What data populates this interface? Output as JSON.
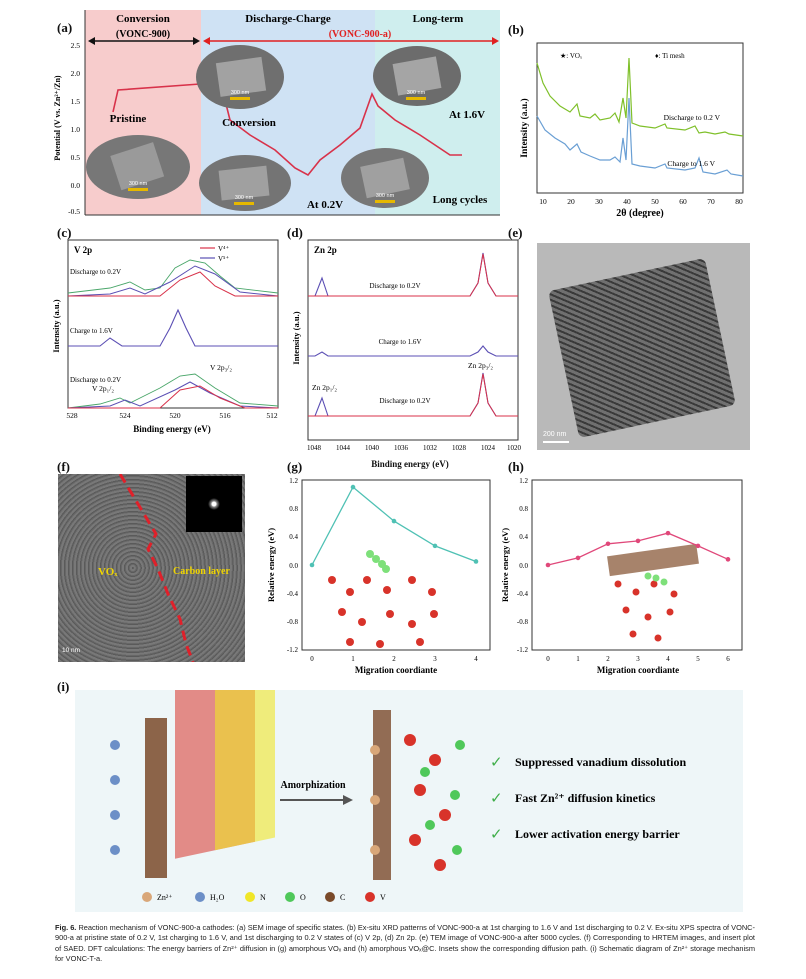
{
  "panels": {
    "a": {
      "letter": "(a)",
      "stages": [
        "Conversion",
        "Discharge-Charge",
        "Long-term"
      ],
      "stage_sub_left": "(VONC-900)",
      "stage_sub_right": "(VONC-900-a)",
      "ylabel": "Potential (V vs. Zn²⁺/Zn)",
      "yticks": [
        "2.5",
        "2.0",
        "1.5",
        "1.0",
        "0.5",
        "0.0",
        "-0.5"
      ],
      "labels": [
        "Pristine",
        "Conversion",
        "At 0.2V",
        "At 1.6V",
        "Long cycles"
      ],
      "scalebar": "300 nm",
      "colors": {
        "conversion": "#f6c6c6",
        "discharge": "#cfe3f5",
        "longterm": "#cdeef0",
        "curve": "#d8324a",
        "arrow": "#e02020"
      }
    },
    "b": {
      "letter": "(b)",
      "ylabel": "Intensity (a.u.)",
      "xlabel": "2θ (degree)",
      "xticks": [
        "10",
        "20",
        "30",
        "40",
        "50",
        "60",
        "70",
        "80"
      ],
      "legend_vox": "★: VOₓ",
      "legend_ti": "♦: Ti mesh",
      "series": [
        {
          "name": "Discharge to 0.2 V",
          "color": "#7fc02a"
        },
        {
          "name": "Charge to 1.6 V",
          "color": "#6a9fd4"
        }
      ]
    },
    "c": {
      "letter": "(c)",
      "title": "V 2p",
      "ylabel": "Intensity (a.u.)",
      "xlabel": "Binding energy (eV)",
      "xticks": [
        "528",
        "524",
        "520",
        "516",
        "512"
      ],
      "legend": [
        "V⁴⁺",
        "V⁵⁺"
      ],
      "traces": [
        "Discharge to 0.2V",
        "Charge to 1.6V",
        "Discharge to 0.2V"
      ],
      "peak_labels": [
        "V 2p₃/₂",
        "V 2p₁/₂"
      ]
    },
    "d": {
      "letter": "(d)",
      "title": "Zn 2p",
      "ylabel": "Intensity (a.u.)",
      "xlabel": "Binding energy (eV)",
      "xticks": [
        "1048",
        "1044",
        "1040",
        "1036",
        "1032",
        "1028",
        "1024",
        "1020"
      ],
      "traces": [
        "Discharge to 0.2V",
        "Charge to 1.6V",
        "Discharge to 0.2V"
      ],
      "peak_labels": [
        "Zn 2p₁/₂",
        "Zn 2p₃/₂"
      ]
    },
    "e": {
      "letter": "(e)",
      "scalebar": "200 nm"
    },
    "f": {
      "letter": "(f)",
      "label_vox": "VOₓ",
      "label_carbon": "Carbon layer",
      "scalebar": "10 nm"
    },
    "g": {
      "letter": "(g)",
      "ylabel": "Relative energy (eV)",
      "xlabel": "Migration coordiante",
      "yticks": [
        "1.2",
        "0.8",
        "0.4",
        "0.0",
        "-0.4",
        "-0.8",
        "-1.2"
      ],
      "xticks": [
        "0",
        "1",
        "2",
        "3",
        "4"
      ],
      "color": "#4fc1b4"
    },
    "h": {
      "letter": "(h)",
      "ylabel": "Relative energy (eV)",
      "xlabel": "Migration coordiante",
      "yticks": [
        "1.2",
        "0.8",
        "0.4",
        "0.0",
        "-0.4",
        "-0.8",
        "-1.2"
      ],
      "xticks": [
        "0",
        "1",
        "2",
        "3",
        "4",
        "5",
        "6"
      ],
      "color": "#e0487a"
    },
    "i": {
      "letter": "(i)",
      "arrow_label": "Amorphization",
      "benefits": [
        "Suppressed vanadium dissolution",
        "Fast Zn²⁺ diffusion kinetics",
        "Lower activation energy barrier"
      ],
      "legend": [
        {
          "label": "Zn²⁺",
          "color": "#d9a779"
        },
        {
          "label": "H₂O",
          "color": "#6c8fc7"
        },
        {
          "label": "N",
          "color": "#f0e628"
        },
        {
          "label": "O",
          "color": "#4fc85a"
        },
        {
          "label": "C",
          "color": "#7a4a2a"
        },
        {
          "label": "V",
          "color": "#d8332a"
        }
      ]
    }
  },
  "chart_data": [
    {
      "type": "line",
      "title": "",
      "xlabel": "Migration coordiante",
      "ylabel": "Relative energy (eV)",
      "ylim": [
        -1.2,
        1.2
      ],
      "x": [
        0,
        1,
        2,
        3,
        4
      ],
      "series": [
        {
          "values": [
            0.0,
            1.1,
            0.62,
            0.27,
            0.05
          ]
        }
      ]
    },
    {
      "type": "line",
      "title": "",
      "xlabel": "Migration coordiante",
      "ylabel": "Relative energy (eV)",
      "ylim": [
        -1.2,
        1.2
      ],
      "x": [
        0,
        1,
        2,
        3,
        4,
        5,
        6
      ],
      "series": [
        {
          "values": [
            0.0,
            0.1,
            0.3,
            0.34,
            0.45,
            0.27,
            0.08
          ]
        }
      ]
    }
  ],
  "caption": {
    "label": "Fig. 6.",
    "text": "Reaction mechanism of VONC-900-a cathodes: (a) SEM image of specific states. (b) Ex-situ XRD patterns of VONC-900-a at 1st charging to 1.6 V and 1st discharging to 0.2 V. Ex-situ XPS spectra of VONC-900-a at pristine state of 0.2 V, 1st charging to 1.6 V, and 1st discharging to 0.2 V states of (c) V 2p, (d) Zn 2p. (e) TEM image of VONC-900-a after 5000 cycles. (f) Corresponding to HRTEM images, and insert plot of SAED. DFT calculations: The energy barriers of Zn²⁺ diffusion in (g) amorphous VOₓ and (h) amorphous VOₓ@C. Insets show the corresponding diffusion path. (i) Schematic diagram of Zn²⁺ storage mechanism for VONC-T-a."
  }
}
